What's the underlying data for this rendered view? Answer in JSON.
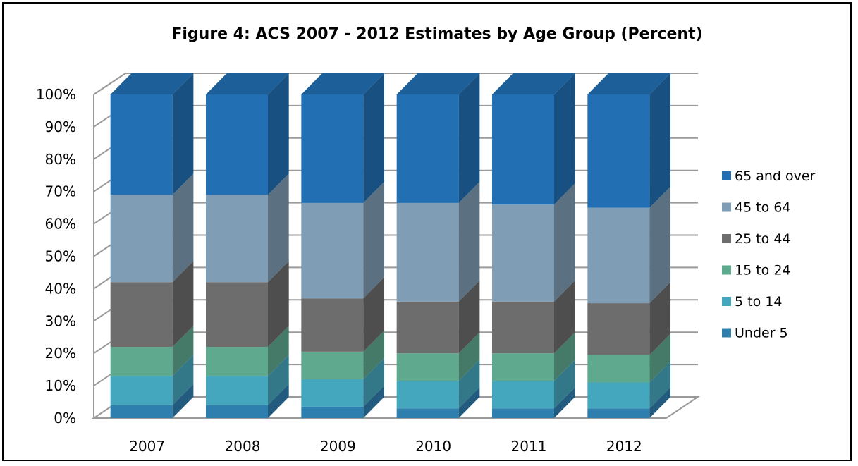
{
  "chart_data": {
    "type": "bar",
    "stacked": true,
    "percent_stacked": true,
    "three_d": true,
    "title": "Figure 4: ACS 2007 - 2012 Estimates by Age Group (Percent)",
    "categories": [
      "2007",
      "2008",
      "2009",
      "2010",
      "2011",
      "2012"
    ],
    "y_ticks": [
      "0%",
      "10%",
      "20%",
      "30%",
      "40%",
      "50%",
      "60%",
      "70%",
      "80%",
      "90%",
      "100%"
    ],
    "ylim": [
      0,
      100
    ],
    "grid": true,
    "legend_position": "right",
    "series": [
      {
        "name": "Under 5",
        "color": "#2f7fae",
        "values": [
          4,
          4,
          3.5,
          3,
          3,
          3
        ]
      },
      {
        "name": "5 to 14",
        "color": "#45a7bd",
        "values": [
          9,
          9,
          8.5,
          8.5,
          8.5,
          8
        ]
      },
      {
        "name": "15 to 24",
        "color": "#5fa98f",
        "values": [
          9,
          9,
          8.5,
          8.5,
          8.5,
          8.5
        ]
      },
      {
        "name": "25 to 44",
        "color": "#6d6d6d",
        "values": [
          20,
          20,
          16.5,
          16,
          16,
          16
        ]
      },
      {
        "name": "45 to 64",
        "color": "#7f9db5",
        "values": [
          27,
          27,
          29.5,
          30.5,
          30,
          29.5
        ]
      },
      {
        "name": "65 and over",
        "color": "#2270b3",
        "values": [
          31,
          31,
          33.5,
          33.5,
          34,
          35
        ]
      }
    ]
  }
}
